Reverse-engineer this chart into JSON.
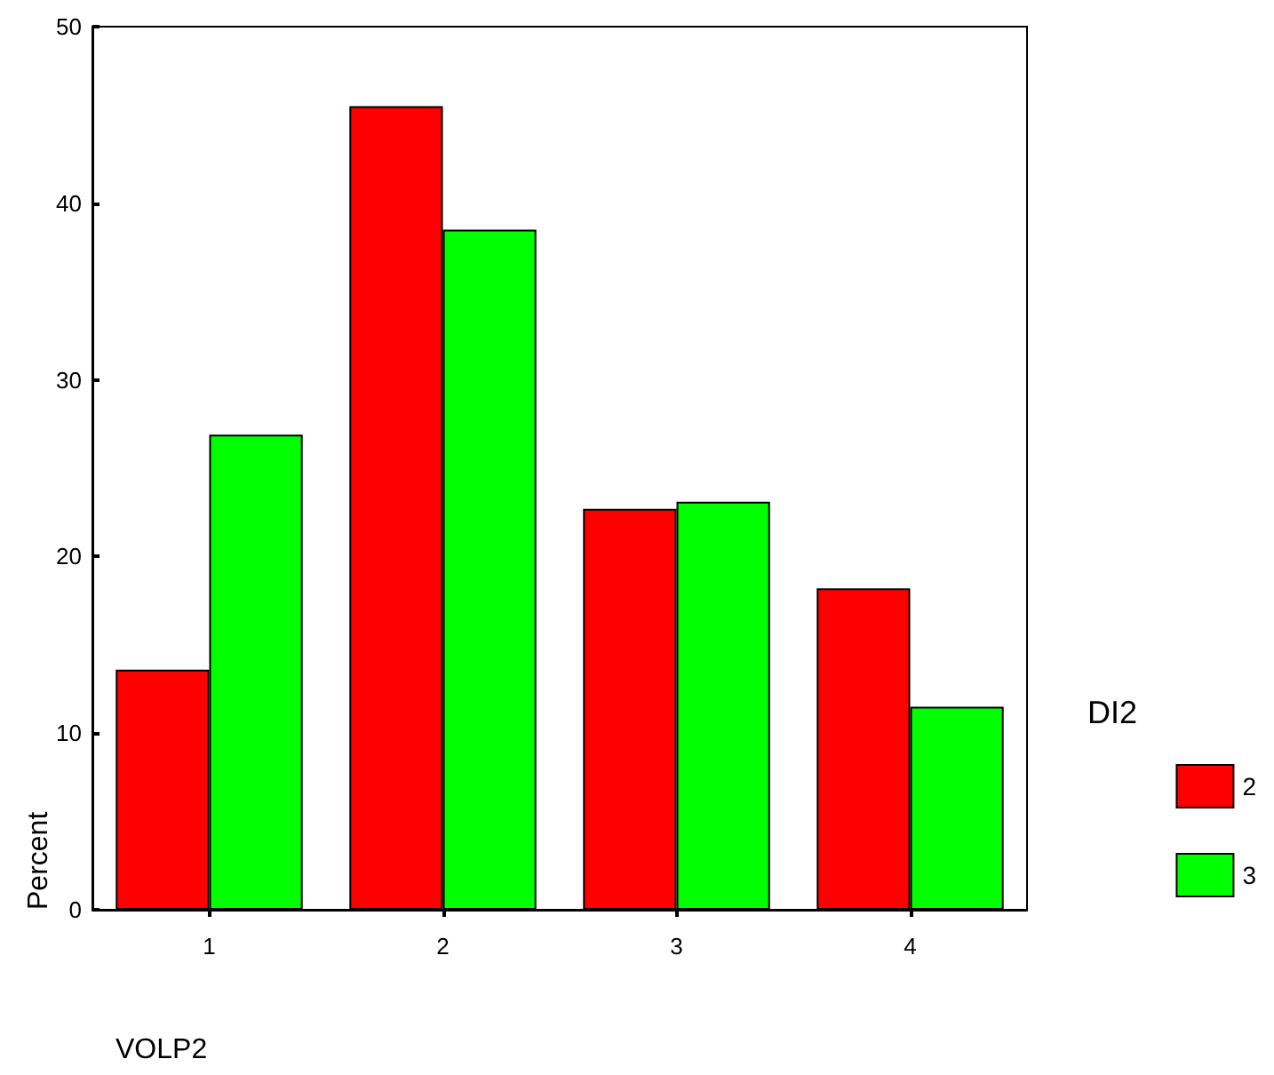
{
  "chart_data": {
    "type": "bar",
    "xlabel": "VOLP2",
    "ylabel": "Percent",
    "legend_title": "DI2",
    "categories": [
      "1",
      "2",
      "3",
      "4"
    ],
    "series": [
      {
        "name": "2",
        "color": "#ff0000",
        "values": [
          13.6,
          45.5,
          22.7,
          18.2
        ]
      },
      {
        "name": "3",
        "color": "#00ff00",
        "values": [
          26.9,
          38.5,
          23.1,
          11.5
        ]
      }
    ],
    "ylim": [
      0,
      50
    ],
    "yticks": [
      0,
      10,
      20,
      30,
      40,
      50
    ],
    "grid": false,
    "legend": "right"
  }
}
